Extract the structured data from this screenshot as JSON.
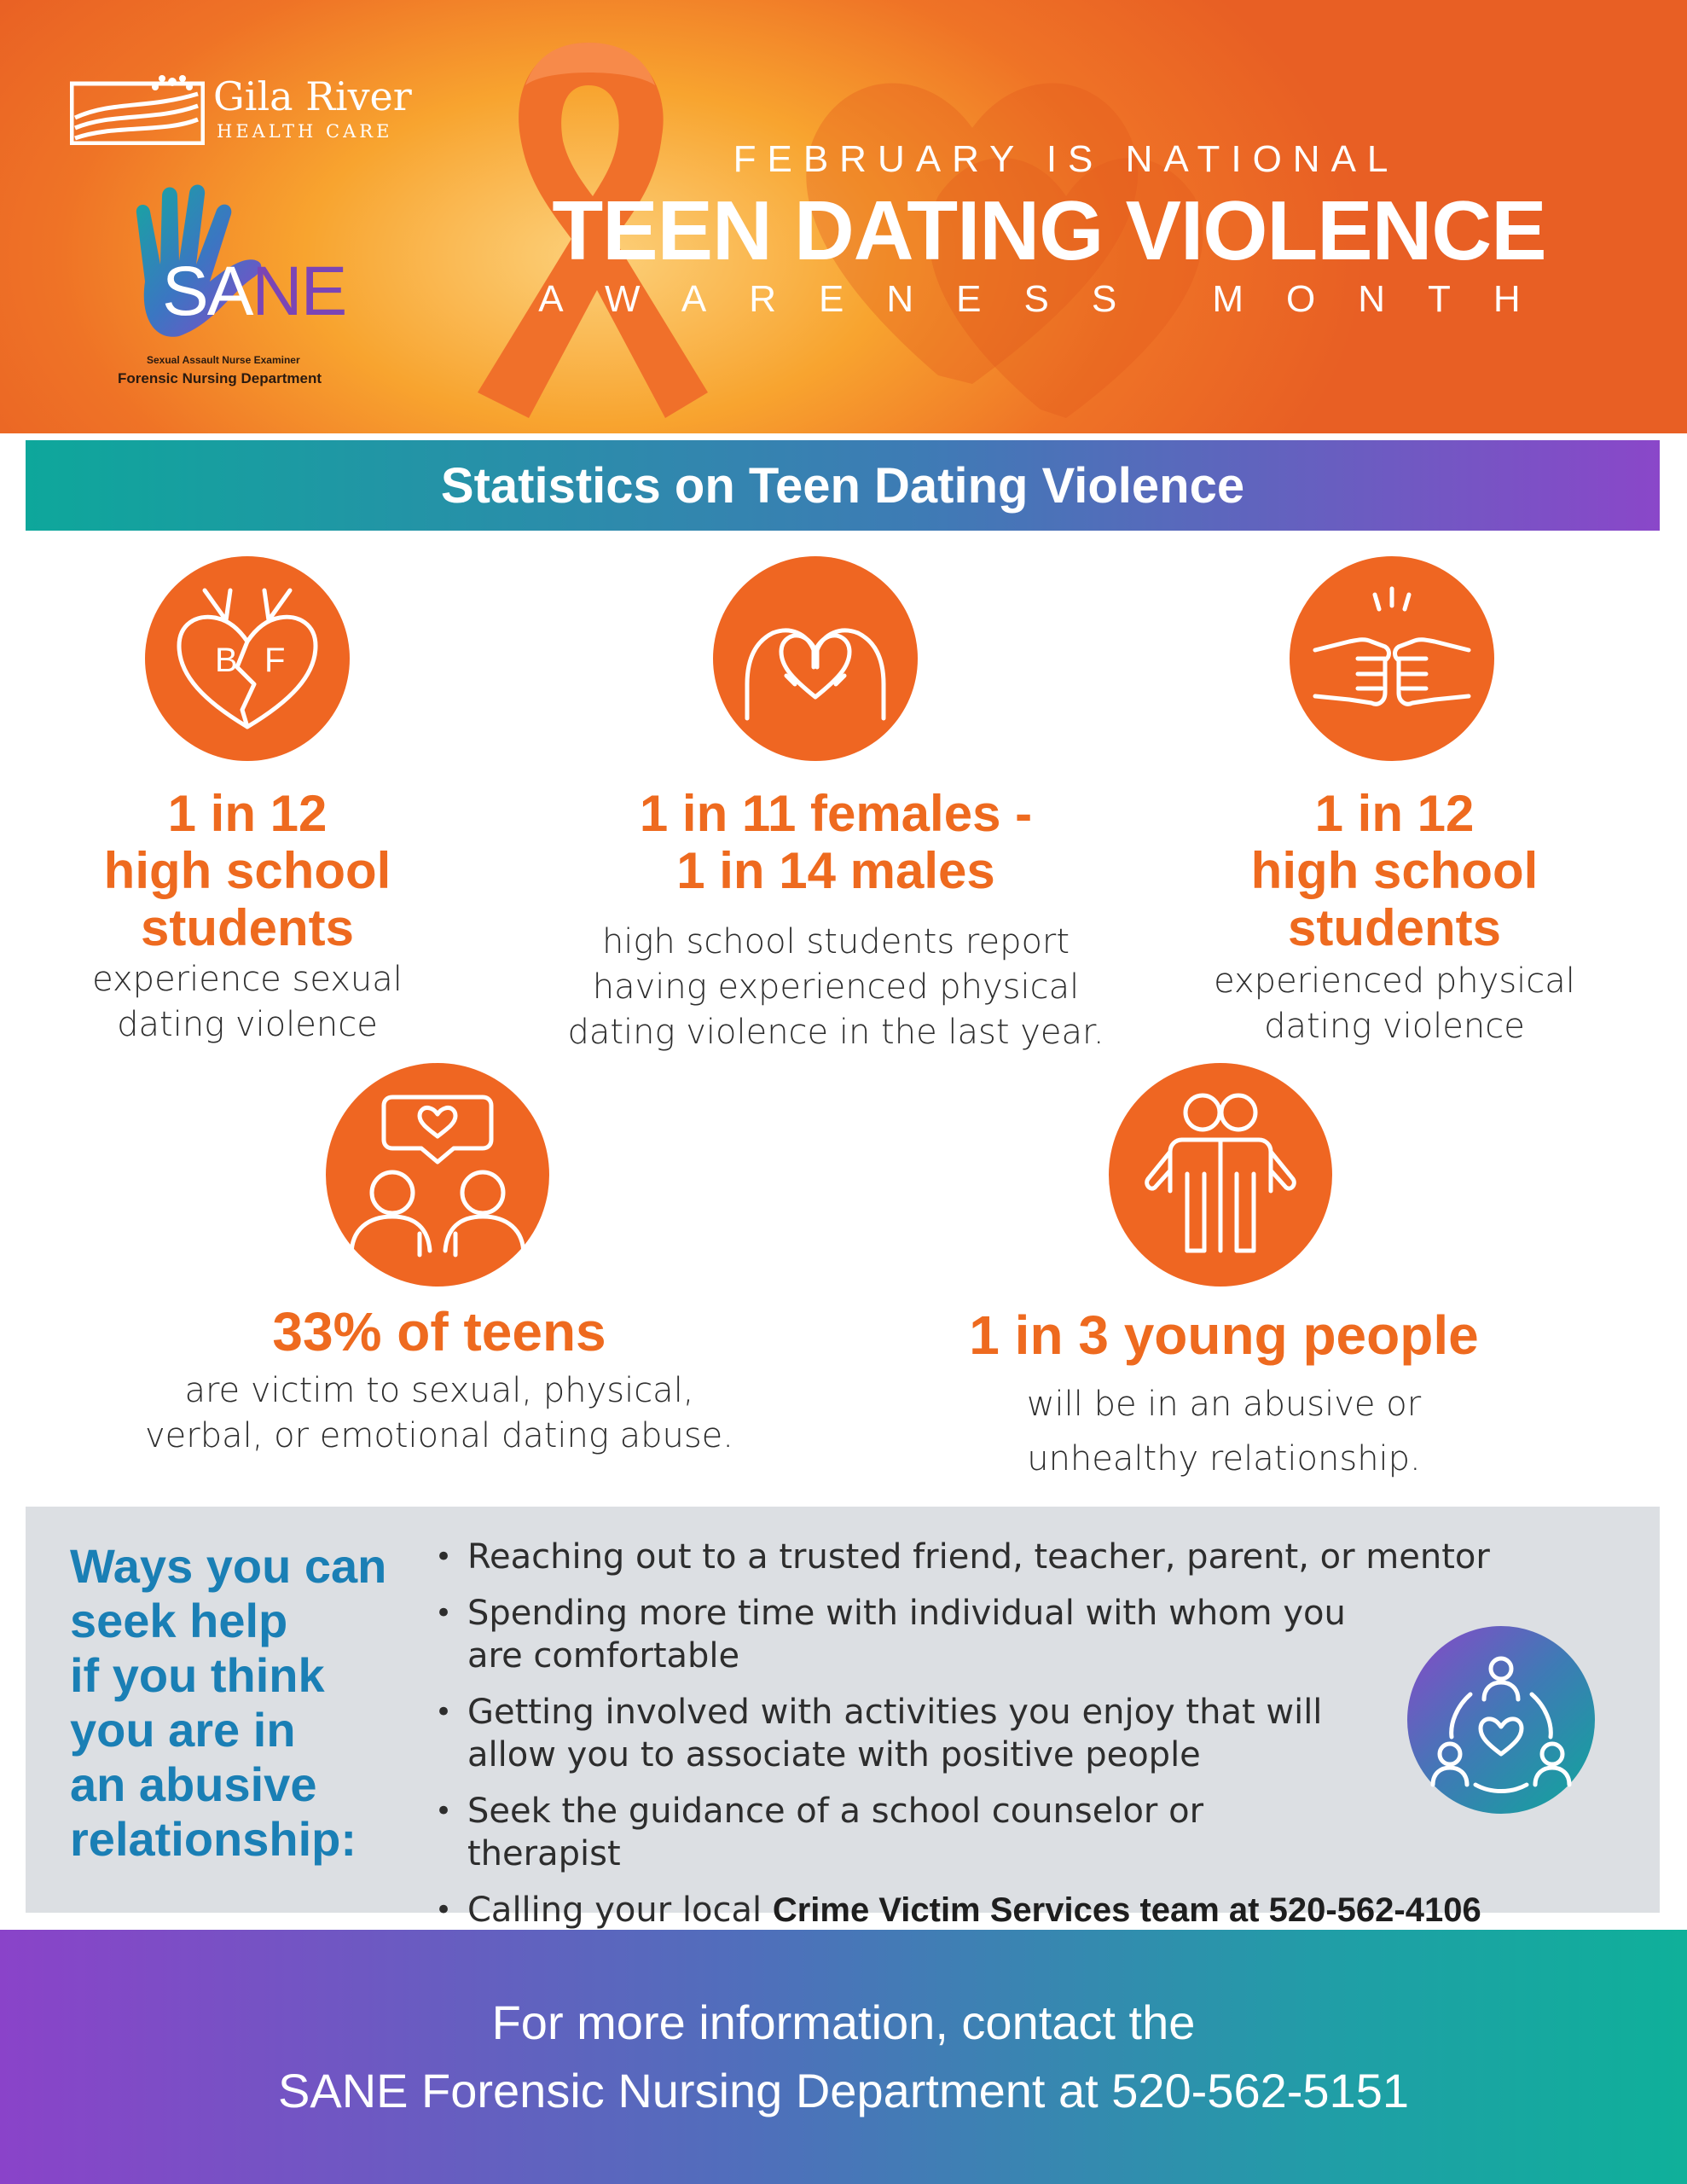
{
  "header": {
    "logo_name": "Gila River",
    "logo_sub": "HEALTH CARE",
    "sane_logo": {
      "sa": "SA",
      "ne": "NE",
      "small_text": "Sexual Assault Nurse Examiner",
      "department": "Forensic Nursing Department"
    },
    "line1": "FEBRUARY IS NATIONAL",
    "line2": "TEEN DATING VIOLENCE",
    "line3": "AWARENESS MONTH"
  },
  "stats_banner": {
    "title": "Statistics on Teen Dating Violence"
  },
  "stats": [
    {
      "icon": "broken-heart-bf-icon",
      "heading": [
        "1 in 12",
        "high school",
        "students"
      ],
      "body": [
        "experience sexual",
        "dating violence"
      ]
    },
    {
      "icon": "hands-heart-icon",
      "heading": [
        "1 in 11 females -",
        "1 in 14 males"
      ],
      "body": [
        "high school students report",
        "having experienced physical",
        "dating violence in the last year."
      ]
    },
    {
      "icon": "fist-bump-icon",
      "heading": [
        "1 in 12",
        "high school",
        "students"
      ],
      "body": [
        "experienced physical",
        "dating violence"
      ]
    },
    {
      "icon": "couple-talking-heart-icon",
      "heading": [
        "33% of teens"
      ],
      "body": [
        "are victim to sexual, physical,",
        "verbal, or emotional dating abuse."
      ]
    },
    {
      "icon": "couple-embrace-icon",
      "heading": [
        "1 in 3 young people"
      ],
      "body": [
        "will be in an abusive or",
        "unhealthy relationship."
      ]
    }
  ],
  "help": {
    "title": [
      "Ways you can",
      "seek help",
      "if you think",
      "you are in",
      "an abusive",
      "relationship:"
    ],
    "items": [
      {
        "text": "Reaching out to a trusted friend, teacher, parent, or mentor",
        "bold": ""
      },
      {
        "text": "Spending more time with individual with whom you are comfortable",
        "bold": ""
      },
      {
        "text": "Getting involved with activities you enjoy that will allow you to associate with positive people",
        "bold": ""
      },
      {
        "text": "Seek the guidance of a school counselor or therapist",
        "bold": ""
      },
      {
        "text": "Calling your local ",
        "bold": "Crime Victim Services team at 520-562-4106"
      }
    ],
    "icon": "community-heart-icon"
  },
  "footer": {
    "line1": "For more information, contact the",
    "line2": "SANE Forensic Nursing Department at 520-562-5151"
  },
  "colors": {
    "orange": "#ef6622",
    "stat_heading": "#ee6a1f",
    "help_title": "#1a7fb5",
    "teal": "#0ea79b",
    "purple": "#8a47c9",
    "help_box_bg": "#dcdfe3"
  }
}
